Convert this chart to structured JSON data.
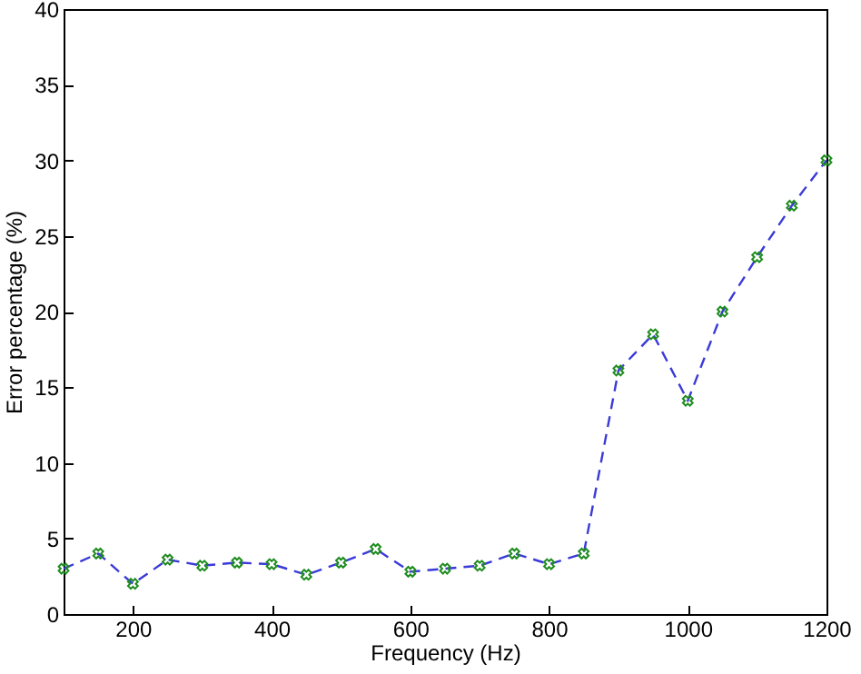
{
  "chart_data": {
    "type": "line",
    "xlabel": "Frequency (Hz)",
    "ylabel": "Error percentage (%)",
    "x": [
      100,
      150,
      200,
      250,
      300,
      350,
      400,
      450,
      500,
      550,
      600,
      650,
      700,
      750,
      800,
      850,
      900,
      950,
      1000,
      1050,
      1100,
      1150,
      1200
    ],
    "series": [
      {
        "color": "#3a3ad8",
        "values": [
          3.0,
          4.0,
          2.0,
          3.6,
          3.2,
          3.4,
          3.3,
          2.6,
          3.4,
          4.3,
          2.8,
          3.0,
          3.2,
          4.0,
          3.3,
          4.0,
          16.1,
          18.5,
          14.1,
          20.0,
          23.6,
          27.0,
          30.0
        ]
      }
    ],
    "xlim": [
      100,
      1200
    ],
    "xticks": [
      200,
      400,
      600,
      800,
      1000,
      1200
    ],
    "ylim": [
      0,
      40
    ],
    "yticks": [
      0,
      5,
      10,
      15,
      20,
      25,
      30,
      35,
      40
    ],
    "marker": "cross",
    "line_style": "dashed",
    "grid": false
  }
}
